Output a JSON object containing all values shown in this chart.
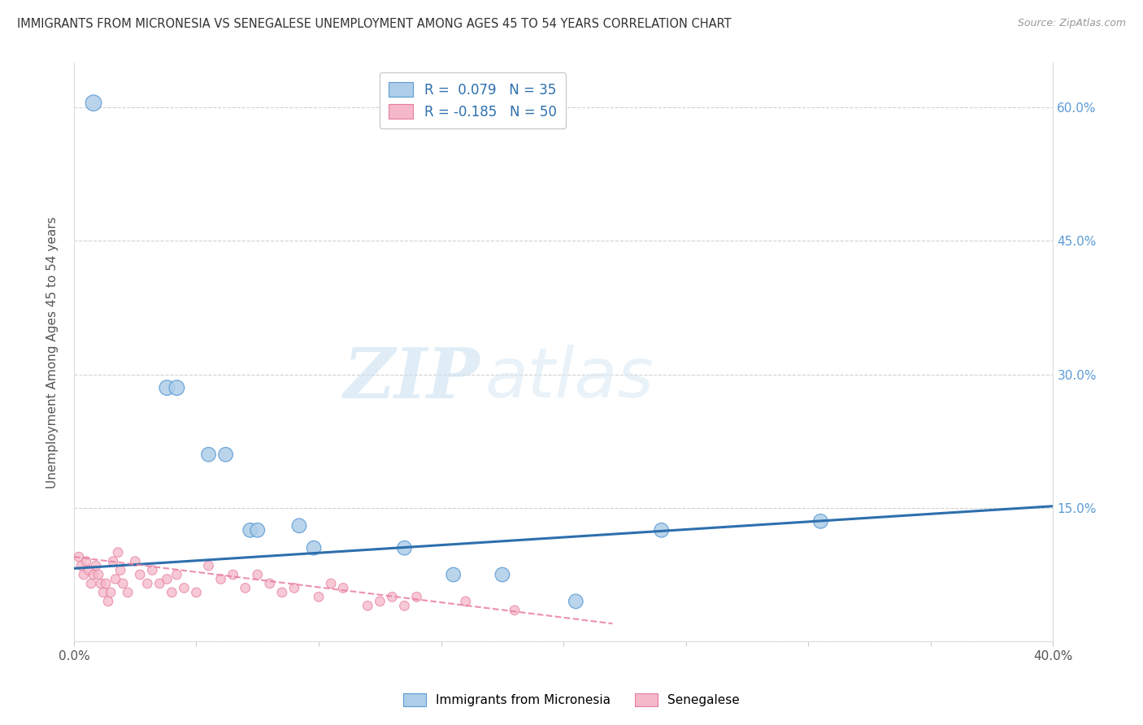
{
  "title": "IMMIGRANTS FROM MICRONESIA VS SENEGALESE UNEMPLOYMENT AMONG AGES 45 TO 54 YEARS CORRELATION CHART",
  "source": "Source: ZipAtlas.com",
  "ylabel": "Unemployment Among Ages 45 to 54 years",
  "xlim": [
    0.0,
    0.4
  ],
  "ylim": [
    0.0,
    0.65
  ],
  "xticks": [
    0.0,
    0.05,
    0.1,
    0.15,
    0.2,
    0.25,
    0.3,
    0.35,
    0.4
  ],
  "yticks_right": [
    0.15,
    0.3,
    0.45,
    0.6
  ],
  "yticklabels_right": [
    "15.0%",
    "30.0%",
    "45.0%",
    "60.0%"
  ],
  "grid_color": "#cccccc",
  "background_color": "#ffffff",
  "blue_fill": "#aecde8",
  "blue_edge": "#5b9bd5",
  "pink_fill": "#f4b8c8",
  "pink_edge": "#e87da0",
  "blue_line_color": "#2d6fad",
  "pink_line_color": "#e07090",
  "legend_R1": "R =  0.079",
  "legend_N1": "N = 35",
  "legend_R2": "R = -0.185",
  "legend_N2": "N = 50",
  "watermark_zip": "ZIP",
  "watermark_atlas": "atlas",
  "legend1_label": "Immigrants from Micronesia",
  "legend2_label": "Senegalese",
  "blue_scatter_x": [
    0.008,
    0.038,
    0.042,
    0.055,
    0.062,
    0.072,
    0.075,
    0.092,
    0.098,
    0.135,
    0.155,
    0.175,
    0.205,
    0.24,
    0.305
  ],
  "blue_scatter_y": [
    0.605,
    0.285,
    0.285,
    0.21,
    0.21,
    0.125,
    0.125,
    0.13,
    0.105,
    0.105,
    0.075,
    0.075,
    0.045,
    0.125,
    0.135
  ],
  "blue_scatter_sizes": [
    200,
    180,
    180,
    160,
    160,
    160,
    160,
    160,
    160,
    160,
    160,
    160,
    160,
    160,
    160
  ],
  "pink_scatter_x": [
    0.002,
    0.003,
    0.004,
    0.005,
    0.006,
    0.007,
    0.008,
    0.009,
    0.01,
    0.011,
    0.012,
    0.013,
    0.014,
    0.015,
    0.016,
    0.017,
    0.018,
    0.019,
    0.02,
    0.022,
    0.025,
    0.027,
    0.03,
    0.032,
    0.035,
    0.038,
    0.04,
    0.042,
    0.045,
    0.05,
    0.055,
    0.06,
    0.065,
    0.07,
    0.075,
    0.08,
    0.085,
    0.09,
    0.1,
    0.105,
    0.11,
    0.12,
    0.125,
    0.13,
    0.135,
    0.14,
    0.16,
    0.18
  ],
  "pink_scatter_y": [
    0.095,
    0.085,
    0.075,
    0.09,
    0.08,
    0.065,
    0.075,
    0.085,
    0.075,
    0.065,
    0.055,
    0.065,
    0.045,
    0.055,
    0.09,
    0.07,
    0.1,
    0.08,
    0.065,
    0.055,
    0.09,
    0.075,
    0.065,
    0.08,
    0.065,
    0.07,
    0.055,
    0.075,
    0.06,
    0.055,
    0.085,
    0.07,
    0.075,
    0.06,
    0.075,
    0.065,
    0.055,
    0.06,
    0.05,
    0.065,
    0.06,
    0.04,
    0.045,
    0.05,
    0.04,
    0.05,
    0.045,
    0.035
  ],
  "pink_scatter_sizes": [
    70,
    70,
    70,
    70,
    70,
    70,
    70,
    70,
    70,
    70,
    70,
    70,
    70,
    70,
    70,
    70,
    70,
    70,
    70,
    70,
    70,
    70,
    70,
    70,
    70,
    70,
    70,
    70,
    70,
    70,
    70,
    70,
    70,
    70,
    70,
    70,
    70,
    70,
    70,
    70,
    70,
    70,
    70,
    70,
    70,
    70,
    70,
    70
  ],
  "blue_trend_x": [
    0.0,
    0.4
  ],
  "blue_trend_y_start": 0.082,
  "blue_trend_y_end": 0.152,
  "pink_trend_x": [
    0.0,
    0.22
  ],
  "pink_trend_y_start": 0.095,
  "pink_trend_y_end": 0.02
}
